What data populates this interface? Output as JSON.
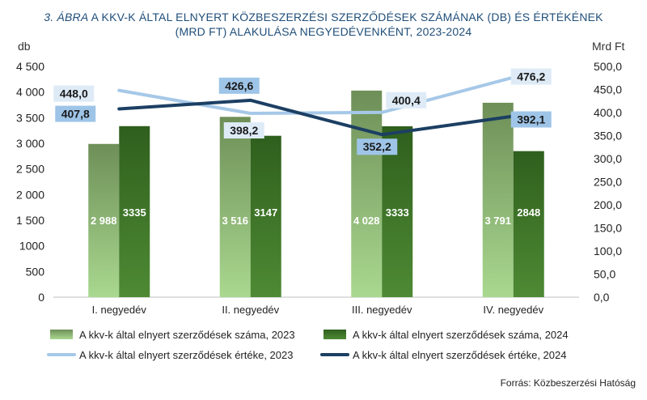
{
  "title": {
    "fig_label": "3. ÁBRA",
    "line1_rest": " A KKV-K ÁLTAL ELNYERT KÖZBESZERZÉSI SZERZŐDÉSEK SZÁMÁNAK (DB) ÉS ÉRTÉKÉNEK",
    "line2": "(MRD FT) ALAKULÁSA NEGYEDÉVENKÉNT, 2023-2024"
  },
  "source": "Forrás: Közbeszerzési Hatóság",
  "chart_data": {
    "type": "bar",
    "categories": [
      "I. negyedév",
      "II. negyedév",
      "III. negyedév",
      "IV. negyedév"
    ],
    "y_left": {
      "label": "db",
      "range": [
        0,
        4500
      ],
      "ticks": [
        "0",
        "500",
        "1000",
        "1 500",
        "2 000",
        "2 500",
        "3 000",
        "3 500",
        "4 000",
        "4 500"
      ]
    },
    "y_right": {
      "label": "Mrd Ft",
      "range": [
        0,
        500
      ],
      "ticks": [
        "0,0",
        "50,0",
        "100,0",
        "150,0",
        "200,0",
        "250,0",
        "300,0",
        "350,0",
        "400,0",
        "450,0",
        "500,0"
      ]
    },
    "series": [
      {
        "name": "A kkv-k által elnyert szerződések száma, 2023",
        "type": "bar",
        "axis": "left",
        "values": [
          2988,
          3516,
          4028,
          3791
        ],
        "labels": [
          "2 988",
          "3 516",
          "4 028",
          "3 791"
        ],
        "color": "#86b86b"
      },
      {
        "name": "A kkv-k által elnyert szerződések száma, 2024",
        "type": "bar",
        "axis": "left",
        "values": [
          3335,
          3147,
          3333,
          2848
        ],
        "labels": [
          "3335",
          "3147",
          "3333",
          "2848"
        ],
        "color": "#2f5f1d"
      },
      {
        "name": "A kkv-k által elnyert szerződések értéke, 2023",
        "type": "line",
        "axis": "right",
        "values": [
          448.0,
          398.2,
          400.4,
          476.2
        ],
        "labels": [
          "448,0",
          "398,2",
          "400,4",
          "476,2"
        ],
        "color": "#a6c8e8"
      },
      {
        "name": "A kkv-k által elnyert szerződések értéke, 2024",
        "type": "line",
        "axis": "right",
        "values": [
          407.8,
          426.6,
          352.2,
          392.1
        ],
        "labels": [
          "407,8",
          "426,6",
          "352,2",
          "392,1"
        ],
        "color": "#1c3f63"
      }
    ],
    "grid": false,
    "legend_position": "bottom"
  }
}
